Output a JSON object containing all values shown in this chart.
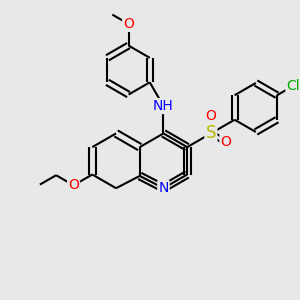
{
  "background_color": "#e8e8e8",
  "atom_colors": {
    "N": "#0000ff",
    "O": "#ff0000",
    "S": "#b8b800",
    "Cl": "#00aa00",
    "H": "#008888",
    "C": "#000000"
  },
  "bond_width": 1.5,
  "dbo": 0.12,
  "font_size": 10,
  "figsize": [
    3.0,
    3.0
  ],
  "dpi": 100,
  "bl": 1.0
}
